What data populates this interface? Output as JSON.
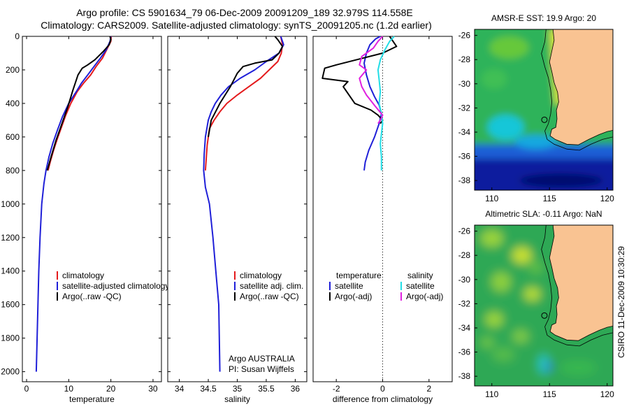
{
  "title": {
    "line1": "Argo profile: CS 5901634_79 06-Dec-2009 20091209_189 32.979S 114.558E",
    "line2": "Climatology: CARS2009. Satellite-adjusted climatology: synTS_20091205.nc (1.2d earlier)"
  },
  "side_label": "CSIRO 11-Dec-2009 10:30:29",
  "colors": {
    "climatology": "#e41a1c",
    "satellite": "#1f1fd8",
    "argo": "#000000",
    "sal_satellite": "#22dde6",
    "sal_argo": "#e020e0",
    "land": "#f9c392",
    "coast": "#000000"
  },
  "chart_data": [
    {
      "type": "line",
      "xlabel": "temperature",
      "ylabel": "",
      "xlim": [
        -1,
        32
      ],
      "ylim": [
        2060,
        0
      ],
      "xticks": [
        0,
        10,
        20,
        30
      ],
      "yticks": [
        0,
        200,
        400,
        600,
        800,
        1000,
        1200,
        1400,
        1600,
        1800,
        2000
      ],
      "legend": [
        "climatology",
        "satellite-adjusted climatology",
        "Argo(..raw -QC)"
      ],
      "legend_position": "lower-center",
      "series": [
        {
          "name": "climatology",
          "color_key": "climatology",
          "x": [
            20.1,
            20.0,
            19.0,
            18.0,
            16.5,
            15.2,
            13.5,
            12.0,
            10.5,
            9.3,
            8.3,
            7.3,
            6.4,
            5.6,
            5.1
          ],
          "y": [
            0,
            30,
            80,
            130,
            180,
            230,
            280,
            330,
            400,
            470,
            540,
            610,
            680,
            750,
            800
          ]
        },
        {
          "name": "satellite-adjusted climatology",
          "color_key": "satellite",
          "x": [
            20.0,
            19.8,
            18.9,
            17.5,
            16.0,
            14.5,
            13.0,
            11.8,
            10.0,
            8.5,
            7.3,
            6.2,
            5.3,
            4.6,
            4.1,
            3.6,
            3.2,
            2.9,
            2.7,
            2.5,
            2.3
          ],
          "y": [
            0,
            30,
            80,
            130,
            180,
            230,
            280,
            330,
            400,
            480,
            560,
            640,
            720,
            800,
            880,
            1000,
            1200,
            1400,
            1600,
            1800,
            2000
          ]
        },
        {
          "name": "Argo(..raw -QC)",
          "color_key": "argo",
          "x": [
            19.8,
            20.0,
            19.6,
            18.2,
            16.2,
            14.5,
            13.2,
            12.2,
            11.0,
            9.8,
            8.4,
            7.0,
            5.8,
            4.9
          ],
          "y": [
            0,
            20,
            50,
            90,
            140,
            170,
            190,
            230,
            320,
            420,
            520,
            620,
            720,
            800
          ]
        }
      ]
    },
    {
      "type": "line",
      "xlabel": "salinity",
      "ylabel": "",
      "xlim": [
        33.8,
        36.2
      ],
      "ylim": [
        2060,
        0
      ],
      "xticks": [
        34,
        34.5,
        35,
        35.5,
        36
      ],
      "yticks": [
        0,
        200,
        400,
        600,
        800,
        1000,
        1200,
        1400,
        1600,
        1800,
        2000
      ],
      "legend": [
        "climatology",
        "satellite adj. clim.",
        "Argo(..raw -QC)"
      ],
      "legend_position": "lower-right",
      "annotations": [
        "Argo AUSTRALIA",
        "PI: Susan Wijffels"
      ],
      "series": [
        {
          "name": "climatology",
          "color_key": "climatology",
          "x": [
            35.75,
            35.78,
            35.76,
            35.7,
            35.55,
            35.4,
            35.2,
            35.0,
            34.82,
            34.7,
            34.6,
            34.52,
            34.48,
            34.45
          ],
          "y": [
            0,
            50,
            100,
            150,
            200,
            250,
            300,
            350,
            400,
            450,
            500,
            550,
            650,
            800
          ]
        },
        {
          "name": "satellite adj. clim.",
          "color_key": "satellite",
          "x": [
            35.75,
            35.8,
            35.72,
            35.5,
            35.3,
            35.05,
            34.85,
            34.72,
            34.62,
            34.55,
            34.5,
            34.45,
            34.43,
            34.42,
            34.45,
            34.52,
            34.58,
            34.63,
            34.68,
            34.7
          ],
          "y": [
            0,
            50,
            100,
            150,
            200,
            250,
            300,
            350,
            400,
            450,
            500,
            600,
            700,
            800,
            900,
            1000,
            1200,
            1400,
            1600,
            2000
          ]
        },
        {
          "name": "Argo(..raw -QC)",
          "color_key": "argo",
          "x": [
            35.65,
            35.7,
            35.78,
            35.72,
            35.6,
            35.3,
            35.1,
            35.0,
            34.88,
            34.7,
            34.55,
            34.5
          ],
          "y": [
            0,
            20,
            60,
            100,
            140,
            160,
            180,
            220,
            300,
            400,
            500,
            600
          ]
        }
      ]
    },
    {
      "type": "line",
      "xlabel": "difference from climatology",
      "ylabel": "",
      "xlim": [
        -3.0,
        3.0
      ],
      "ylim": [
        2060,
        0
      ],
      "xticks": [
        -2,
        0,
        2
      ],
      "legend": [
        "temperature",
        "satellite",
        "Argo(-adj)",
        "salinity",
        "satellite",
        "Argo(-adj)"
      ],
      "legend_position": "lower-center",
      "series": [
        {
          "name": "satellite",
          "color_key": "satellite",
          "x": [
            -0.1,
            -0.3,
            -0.55,
            -0.7,
            -0.8,
            -0.7,
            -0.55,
            -0.35,
            -0.15,
            -0.05,
            -0.15,
            -0.35,
            -0.6,
            -0.75,
            -0.8
          ],
          "y": [
            0,
            15,
            50,
            100,
            160,
            230,
            300,
            360,
            410,
            460,
            520,
            600,
            680,
            750,
            800
          ]
        },
        {
          "name": "Argo(-adj)",
          "color_key": "argo",
          "x": [
            0.3,
            0.6,
            0.0,
            -2.0,
            -2.5,
            -2.6,
            -1.5,
            -1.7,
            -1.2,
            -0.5,
            -0.2,
            0.0,
            -0.1
          ],
          "y": [
            0,
            60,
            100,
            170,
            190,
            250,
            270,
            300,
            400,
            440,
            470,
            500,
            520
          ]
        },
        {
          "name": "satellite",
          "color_key": "sal_satellite",
          "x": [
            0.5,
            0.3,
            0.1,
            -0.1,
            -0.2,
            -0.15,
            -0.1,
            -0.15,
            -0.05,
            0.0,
            -0.05,
            -0.1,
            -0.05,
            -0.05
          ],
          "y": [
            0,
            30,
            80,
            140,
            200,
            260,
            330,
            400,
            460,
            520,
            580,
            640,
            720,
            800
          ]
        },
        {
          "name": "Argo(-adj)",
          "color_key": "sal_argo",
          "x": [
            0.0,
            -0.2,
            -0.4,
            -0.9,
            -1.0,
            -0.7,
            -1.0,
            -0.9,
            -0.7,
            -0.3,
            0.0,
            -0.1,
            -0.2
          ],
          "y": [
            0,
            30,
            70,
            120,
            170,
            200,
            250,
            300,
            350,
            420,
            470,
            500,
            520
          ]
        }
      ]
    },
    {
      "type": "heatmap",
      "title": "AMSR-E SST: 19.9 Argo: 20",
      "xlim": [
        108.5,
        120.5
      ],
      "ylim": [
        -38.8,
        -25.5
      ],
      "xticks": [
        110,
        115,
        120
      ],
      "yticks": [
        -26,
        -28,
        -30,
        -32,
        -34,
        -36,
        -38
      ],
      "marker": {
        "lon": 114.558,
        "lat": -32.979
      }
    },
    {
      "type": "heatmap",
      "title": "Altimetric SLA: -0.11 Argo: NaN",
      "xlim": [
        108.5,
        120.5
      ],
      "ylim": [
        -38.8,
        -25.5
      ],
      "xticks": [
        110,
        115,
        120
      ],
      "yticks": [
        -26,
        -28,
        -30,
        -32,
        -34,
        -36,
        -38
      ],
      "marker": {
        "lon": 114.558,
        "lat": -32.979
      }
    }
  ]
}
